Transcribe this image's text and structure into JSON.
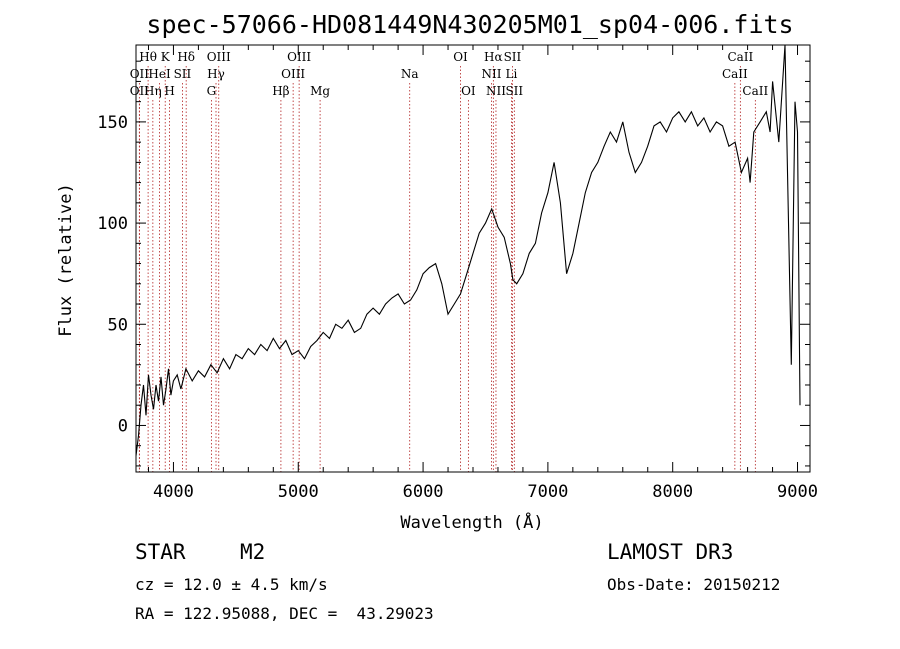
{
  "chart_data": {
    "type": "line",
    "title": "spec-57066-HD081449N430205M01_sp04-006.fits",
    "xlabel": "Wavelength (Å)",
    "ylabel": "Flux (relative)",
    "xlim": [
      3700,
      9100
    ],
    "ylim": [
      -23,
      188
    ],
    "xticks": [
      4000,
      5000,
      6000,
      7000,
      8000,
      9000
    ],
    "yticks": [
      0,
      50,
      100,
      150
    ],
    "series": [
      {
        "name": "flux",
        "x": [
          3700,
          3720,
          3740,
          3760,
          3780,
          3800,
          3820,
          3840,
          3860,
          3880,
          3900,
          3920,
          3940,
          3960,
          3980,
          4000,
          4030,
          4060,
          4100,
          4150,
          4200,
          4250,
          4300,
          4350,
          4400,
          4450,
          4500,
          4550,
          4600,
          4650,
          4700,
          4750,
          4800,
          4850,
          4900,
          4950,
          5000,
          5050,
          5100,
          5150,
          5200,
          5250,
          5300,
          5350,
          5400,
          5450,
          5500,
          5550,
          5600,
          5650,
          5700,
          5750,
          5800,
          5850,
          5900,
          5950,
          6000,
          6050,
          6100,
          6150,
          6200,
          6250,
          6300,
          6350,
          6400,
          6450,
          6500,
          6550,
          6600,
          6650,
          6700,
          6720,
          6750,
          6800,
          6850,
          6900,
          6950,
          7000,
          7050,
          7100,
          7150,
          7200,
          7250,
          7300,
          7350,
          7400,
          7450,
          7500,
          7550,
          7600,
          7650,
          7700,
          7750,
          7800,
          7850,
          7900,
          7950,
          8000,
          8050,
          8100,
          8150,
          8200,
          8250,
          8300,
          8350,
          8400,
          8450,
          8500,
          8550,
          8600,
          8620,
          8650,
          8700,
          8750,
          8780,
          8800,
          8850,
          8900,
          8950,
          8980,
          9000,
          9020
        ],
        "values": [
          -15,
          -5,
          10,
          20,
          5,
          25,
          15,
          8,
          20,
          12,
          24,
          10,
          18,
          28,
          15,
          22,
          25,
          18,
          28,
          22,
          27,
          24,
          30,
          26,
          33,
          28,
          35,
          33,
          38,
          35,
          40,
          37,
          43,
          38,
          42,
          35,
          37,
          33,
          39,
          42,
          46,
          43,
          50,
          48,
          52,
          46,
          48,
          55,
          58,
          55,
          60,
          63,
          65,
          60,
          62,
          67,
          75,
          78,
          80,
          70,
          55,
          60,
          65,
          75,
          85,
          95,
          100,
          107,
          98,
          93,
          80,
          72,
          70,
          75,
          85,
          90,
          105,
          115,
          130,
          110,
          75,
          85,
          100,
          115,
          125,
          130,
          138,
          145,
          140,
          150,
          135,
          125,
          130,
          138,
          148,
          150,
          145,
          152,
          155,
          150,
          155,
          148,
          152,
          145,
          150,
          148,
          138,
          140,
          125,
          132,
          120,
          145,
          150,
          155,
          145,
          170,
          140,
          188,
          30,
          160,
          145,
          10
        ]
      }
    ],
    "line_markers": [
      {
        "label": "Hθ",
        "x": 3797,
        "row": 0
      },
      {
        "label": "OII",
        "x": 3727,
        "row": 1
      },
      {
        "label": "OII",
        "x": 3727,
        "row": 2
      },
      {
        "label": "Hη",
        "x": 3835,
        "row": 2
      },
      {
        "label": "HeI",
        "x": 3889,
        "row": 1
      },
      {
        "label": "K",
        "x": 3934,
        "row": 0
      },
      {
        "label": "H",
        "x": 3969,
        "row": 2
      },
      {
        "label": "SII",
        "x": 4072,
        "row": 1
      },
      {
        "label": "Hδ",
        "x": 4102,
        "row": 0
      },
      {
        "label": "OIII",
        "x": 4363,
        "row": 0
      },
      {
        "label": "Hγ",
        "x": 4341,
        "row": 1
      },
      {
        "label": "G",
        "x": 4304,
        "row": 2
      },
      {
        "label": "Hβ",
        "x": 4861,
        "row": 2
      },
      {
        "label": "OIII",
        "x": 5007,
        "row": 0
      },
      {
        "label": "OIII",
        "x": 4959,
        "row": 1
      },
      {
        "label": "Mg",
        "x": 5175,
        "row": 2
      },
      {
        "label": "Na",
        "x": 5893,
        "row": 1
      },
      {
        "label": "OI",
        "x": 6300,
        "row": 0
      },
      {
        "label": "OI",
        "x": 6363,
        "row": 2
      },
      {
        "label": "Hα",
        "x": 6563,
        "row": 0
      },
      {
        "label": "NII",
        "x": 6548,
        "row": 1
      },
      {
        "label": "NII",
        "x": 6584,
        "row": 2
      },
      {
        "label": "SII",
        "x": 6716,
        "row": 0
      },
      {
        "label": "Li",
        "x": 6708,
        "row": 1
      },
      {
        "label": "SII",
        "x": 6731,
        "row": 2
      },
      {
        "label": "CaII",
        "x": 8542,
        "row": 0
      },
      {
        "label": "CaII",
        "x": 8498,
        "row": 1
      },
      {
        "label": "CaII",
        "x": 8662,
        "row": 2
      }
    ]
  },
  "info": {
    "object_class": "STAR",
    "subclass": "M2",
    "survey": "LAMOST DR3",
    "redshift": "cz = 12.0 ± 4.5 km/s",
    "obs_date": "Obs-Date: 20150212",
    "coords": "RA = 122.95088, DEC =  43.29023"
  }
}
